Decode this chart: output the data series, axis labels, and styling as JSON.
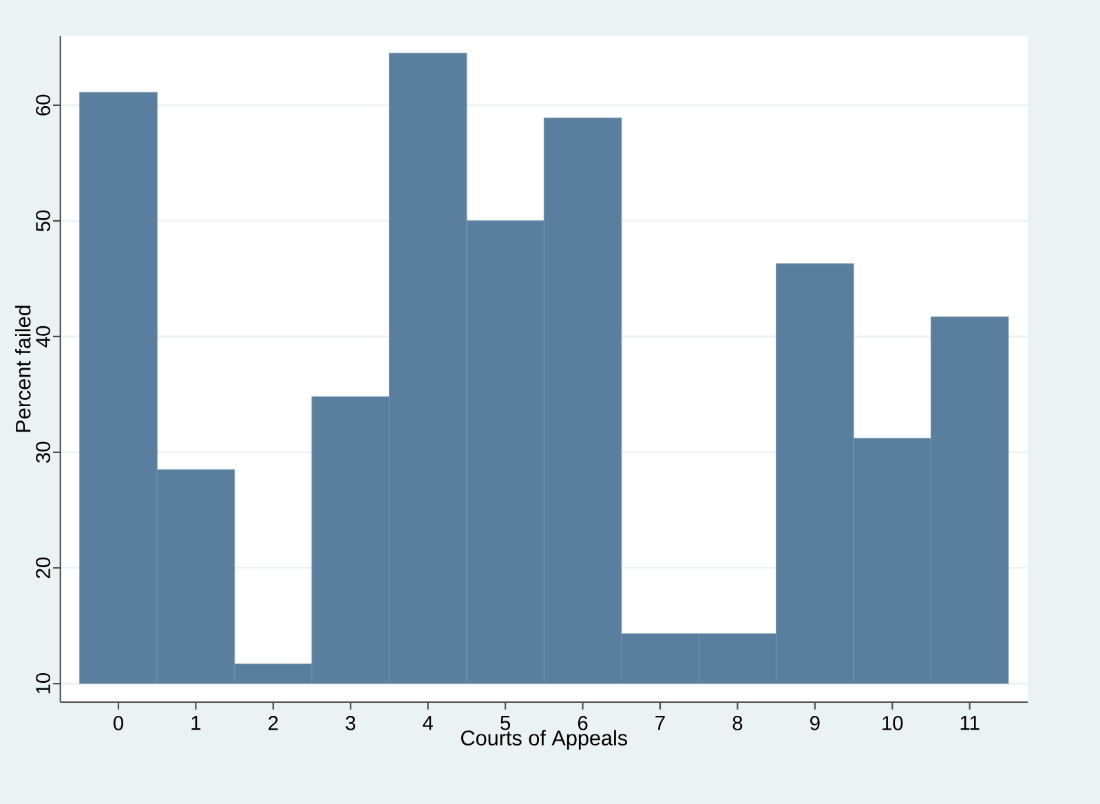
{
  "chart_data": {
    "type": "bar",
    "xlabel": "Courts of Appeals",
    "ylabel": "Percent failed",
    "categories": [
      "0",
      "1",
      "2",
      "3",
      "4",
      "5",
      "6",
      "7",
      "8",
      "9",
      "10",
      "11"
    ],
    "values": [
      51.1,
      18.5,
      1.7,
      24.8,
      54.5,
      40,
      48.9,
      4.3,
      4.3,
      36.3,
      21.2,
      31.7
    ],
    "base": [
      10,
      10,
      10,
      10,
      10,
      10,
      10,
      10,
      10,
      10,
      10,
      10
    ],
    "color": "#5a7f9e",
    "ylim": [
      8.4,
      66
    ],
    "yticks": [
      10,
      20,
      30,
      40,
      50,
      60
    ],
    "grid": "y"
  }
}
